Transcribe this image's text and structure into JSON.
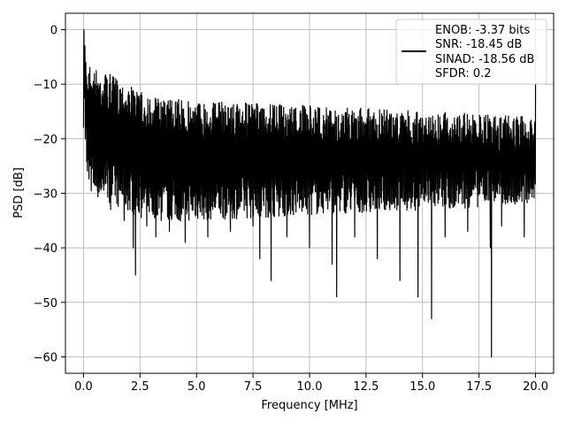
{
  "chart_data": {
    "type": "line",
    "xlabel": "Frequency [MHz]",
    "ylabel": "PSD [dB]",
    "xlim": [
      -0.8,
      20.8
    ],
    "ylim": [
      -63,
      3
    ],
    "xticks": [
      0.0,
      2.5,
      5.0,
      7.5,
      10.0,
      12.5,
      15.0,
      17.5,
      20.0
    ],
    "xtick_labels": [
      "0.0",
      "2.5",
      "5.0",
      "7.5",
      "10.0",
      "12.5",
      "15.0",
      "17.5",
      "20.0"
    ],
    "yticks": [
      0,
      -10,
      -20,
      -30,
      -40,
      -50,
      -60
    ],
    "ytick_labels": [
      "0",
      "−10",
      "−20",
      "−30",
      "−40",
      "−50",
      "−60"
    ],
    "grid": true,
    "legend_placement": "upper-right",
    "legend_lines": [
      "ENOB: -3.37 bits",
      "SNR: -18.45 dB",
      "SINAD: -18.56 dB",
      "SFDR: 0.2"
    ],
    "line_color": "#000000",
    "grid_color": "#b0b0b0",
    "series": [
      {
        "x": [
          0.0,
          0.02,
          0.04,
          0.06,
          0.08,
          0.1,
          0.12,
          0.15,
          0.18,
          0.2,
          0.25,
          0.3,
          0.35,
          0.4,
          0.45,
          0.5,
          0.6,
          0.7,
          0.8,
          1.0,
          1.2,
          1.5,
          1.8,
          2.0,
          2.2,
          2.3,
          2.5,
          2.8,
          3.0,
          3.2,
          3.5,
          3.8,
          4.0,
          4.5,
          5.0,
          5.5,
          6.0,
          6.5,
          7.0,
          7.5,
          7.8,
          8.0,
          8.3,
          8.5,
          9.0,
          9.5,
          10.0,
          10.5,
          11.0,
          11.2,
          11.5,
          12.0,
          12.5,
          13.0,
          13.5,
          14.0,
          14.5,
          14.8,
          15.0,
          15.4,
          15.5,
          16.0,
          16.5,
          17.0,
          17.5,
          18.0,
          18.05,
          18.1,
          18.5,
          19.0,
          19.5,
          20.0
        ],
        "y": [
          -18,
          0,
          -12,
          -3,
          -20,
          -6,
          -18,
          -10,
          -24,
          -14,
          -22,
          -13,
          -25,
          -15,
          -27,
          -16,
          -24,
          -17,
          -29,
          -18,
          -33,
          -19,
          -35,
          -17,
          -40,
          -45,
          -20,
          -36,
          -18,
          -38,
          -20,
          -37,
          -21,
          -39,
          -19,
          -38,
          -20,
          -37,
          -21,
          -36,
          -42,
          -20,
          -46,
          -18,
          -38,
          -20,
          -40,
          -19,
          -43,
          -49,
          -21,
          -38,
          -20,
          -42,
          -19,
          -46,
          -21,
          -49,
          -17,
          -53,
          -20,
          -38,
          -21,
          -37,
          -19,
          -40,
          -60,
          -22,
          -36,
          -20,
          -38,
          -10
        ]
      }
    ]
  }
}
